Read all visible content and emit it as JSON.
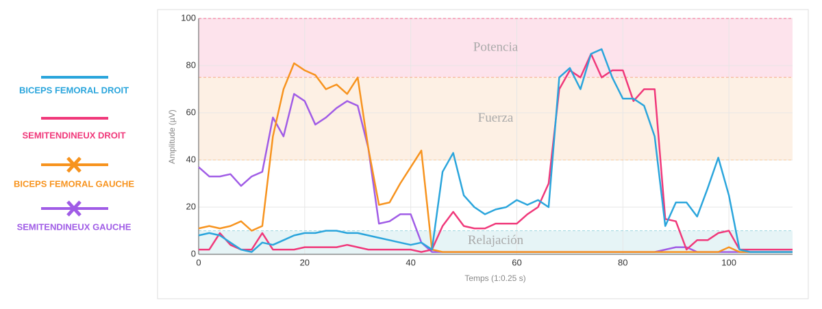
{
  "chart_data": {
    "type": "line",
    "x_label": "Temps (1:0.25 s)",
    "y_label": "Amplitude (µV)",
    "x": [
      0,
      2,
      4,
      6,
      8,
      10,
      12,
      14,
      16,
      18,
      20,
      22,
      24,
      26,
      28,
      30,
      32,
      34,
      36,
      38,
      40,
      42,
      44,
      46,
      48,
      50,
      52,
      54,
      56,
      58,
      60,
      62,
      64,
      66,
      68,
      70,
      72,
      74,
      76,
      78,
      80,
      82,
      84,
      86,
      88,
      90,
      92,
      94,
      96,
      98,
      100,
      102,
      104,
      106,
      108,
      110,
      112
    ],
    "xlim": [
      0,
      112
    ],
    "xticks": [
      0,
      20,
      40,
      60,
      80,
      100
    ],
    "ylim": [
      0,
      100
    ],
    "yticks": [
      0,
      20,
      40,
      60,
      80,
      100
    ],
    "grid": true,
    "bands": [
      {
        "label": "Potencia",
        "from": 75,
        "to": 100,
        "color": "#fde3ec",
        "edge": "#f06b8f"
      },
      {
        "label": "Fuerza",
        "from": 40,
        "to": 75,
        "color": "#fdf0e4",
        "edge": "#f5c99a"
      },
      {
        "label": "Relajación",
        "from": 0,
        "to": 10,
        "color": "#e6f4f6",
        "edge": "#9fd7df"
      }
    ],
    "series": [
      {
        "name": "BICEPS FEMORAL DROIT",
        "color": "#2aa5dc",
        "values": [
          8,
          9,
          8,
          5,
          2,
          1,
          5,
          4,
          6,
          8,
          9,
          9,
          10,
          10,
          9,
          9,
          8,
          7,
          6,
          5,
          4,
          5,
          2,
          35,
          43,
          25,
          20,
          17,
          19,
          20,
          23,
          21,
          23,
          20,
          75,
          79,
          70,
          85,
          87,
          75,
          66,
          66,
          63,
          50,
          12,
          22,
          22,
          16,
          28,
          41,
          25,
          2,
          1,
          1,
          1,
          1,
          1
        ]
      },
      {
        "name": "SEMITENDINEUX DROIT",
        "color": "#f0387a",
        "values": [
          2,
          2,
          9,
          4,
          2,
          2,
          9,
          2,
          2,
          2,
          3,
          3,
          3,
          3,
          4,
          3,
          2,
          2,
          2,
          2,
          2,
          1,
          2,
          12,
          18,
          12,
          11,
          11,
          13,
          13,
          13,
          17,
          20,
          30,
          70,
          78,
          75,
          85,
          75,
          78,
          78,
          65,
          70,
          70,
          15,
          14,
          2,
          6,
          6,
          9,
          10,
          2,
          2,
          2,
          2,
          2,
          2
        ]
      },
      {
        "name": "BICEPS FEMORAL GAUCHE",
        "color": "#f7931e",
        "marker": "x",
        "values": [
          11,
          12,
          11,
          12,
          14,
          10,
          12,
          50,
          70,
          81,
          78,
          76,
          70,
          72,
          68,
          75,
          45,
          21,
          22,
          30,
          37,
          44,
          2,
          1,
          1,
          1,
          1,
          1,
          1,
          1,
          1,
          1,
          1,
          1,
          1,
          1,
          1,
          1,
          1,
          1,
          1,
          1,
          1,
          1,
          1,
          1,
          1,
          1,
          1,
          1,
          3,
          1,
          1,
          1,
          1,
          1,
          1
        ]
      },
      {
        "name": "SEMITENDINEUX GAUCHE",
        "color": "#a05ce6",
        "marker": "x",
        "values": [
          37,
          33,
          33,
          34,
          29,
          33,
          35,
          58,
          50,
          68,
          65,
          55,
          58,
          62,
          65,
          63,
          45,
          13,
          14,
          17,
          17,
          5,
          1,
          1,
          1,
          1,
          1,
          1,
          1,
          1,
          1,
          1,
          1,
          1,
          1,
          1,
          1,
          1,
          1,
          1,
          1,
          1,
          1,
          1,
          2,
          3,
          3,
          1,
          1,
          1,
          1,
          1,
          1,
          1,
          1,
          1,
          1
        ]
      }
    ]
  }
}
